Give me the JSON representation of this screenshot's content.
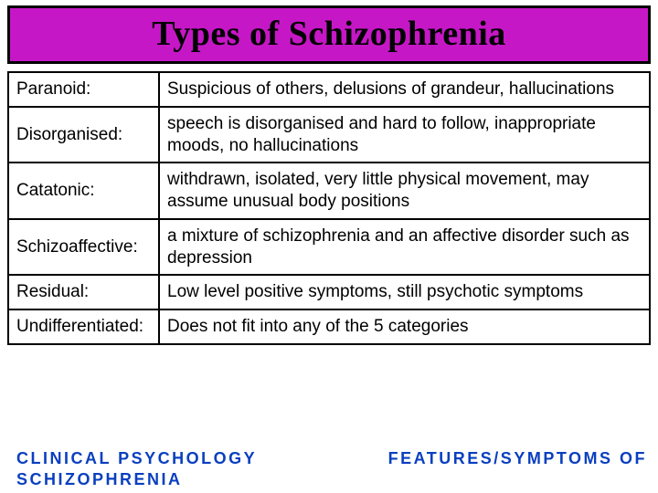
{
  "title": "Types of Schizophrenia",
  "title_bg": "#c617c6",
  "title_border": "#000000",
  "title_text_color": "#000000",
  "table": {
    "border_color": "#000000",
    "rows": [
      {
        "type": "Paranoid:",
        "desc": "Suspicious of others, delusions of grandeur, hallucinations"
      },
      {
        "type": "Disorganised:",
        "desc": "speech is disorganised and hard to follow, inappropriate moods, no hallucinations"
      },
      {
        "type": "Catatonic:",
        "desc": "withdrawn, isolated, very little physical movement, may assume unusual body positions"
      },
      {
        "type": "Schizoaffective:",
        "desc": "a mixture of schizophrenia and an affective disorder such as depression"
      },
      {
        "type": "Residual:",
        "desc": "Low level positive symptoms, still psychotic symptoms"
      },
      {
        "type": "Undifferentiated:",
        "desc": "Does not fit into any of the 5 categories"
      }
    ]
  },
  "footer": {
    "left": "CLINICAL PSYCHOLOGY\nSCHIZOPHRENIA",
    "right": "FEATURES/SYMPTOMS OF",
    "color": "#0a3fbf"
  }
}
